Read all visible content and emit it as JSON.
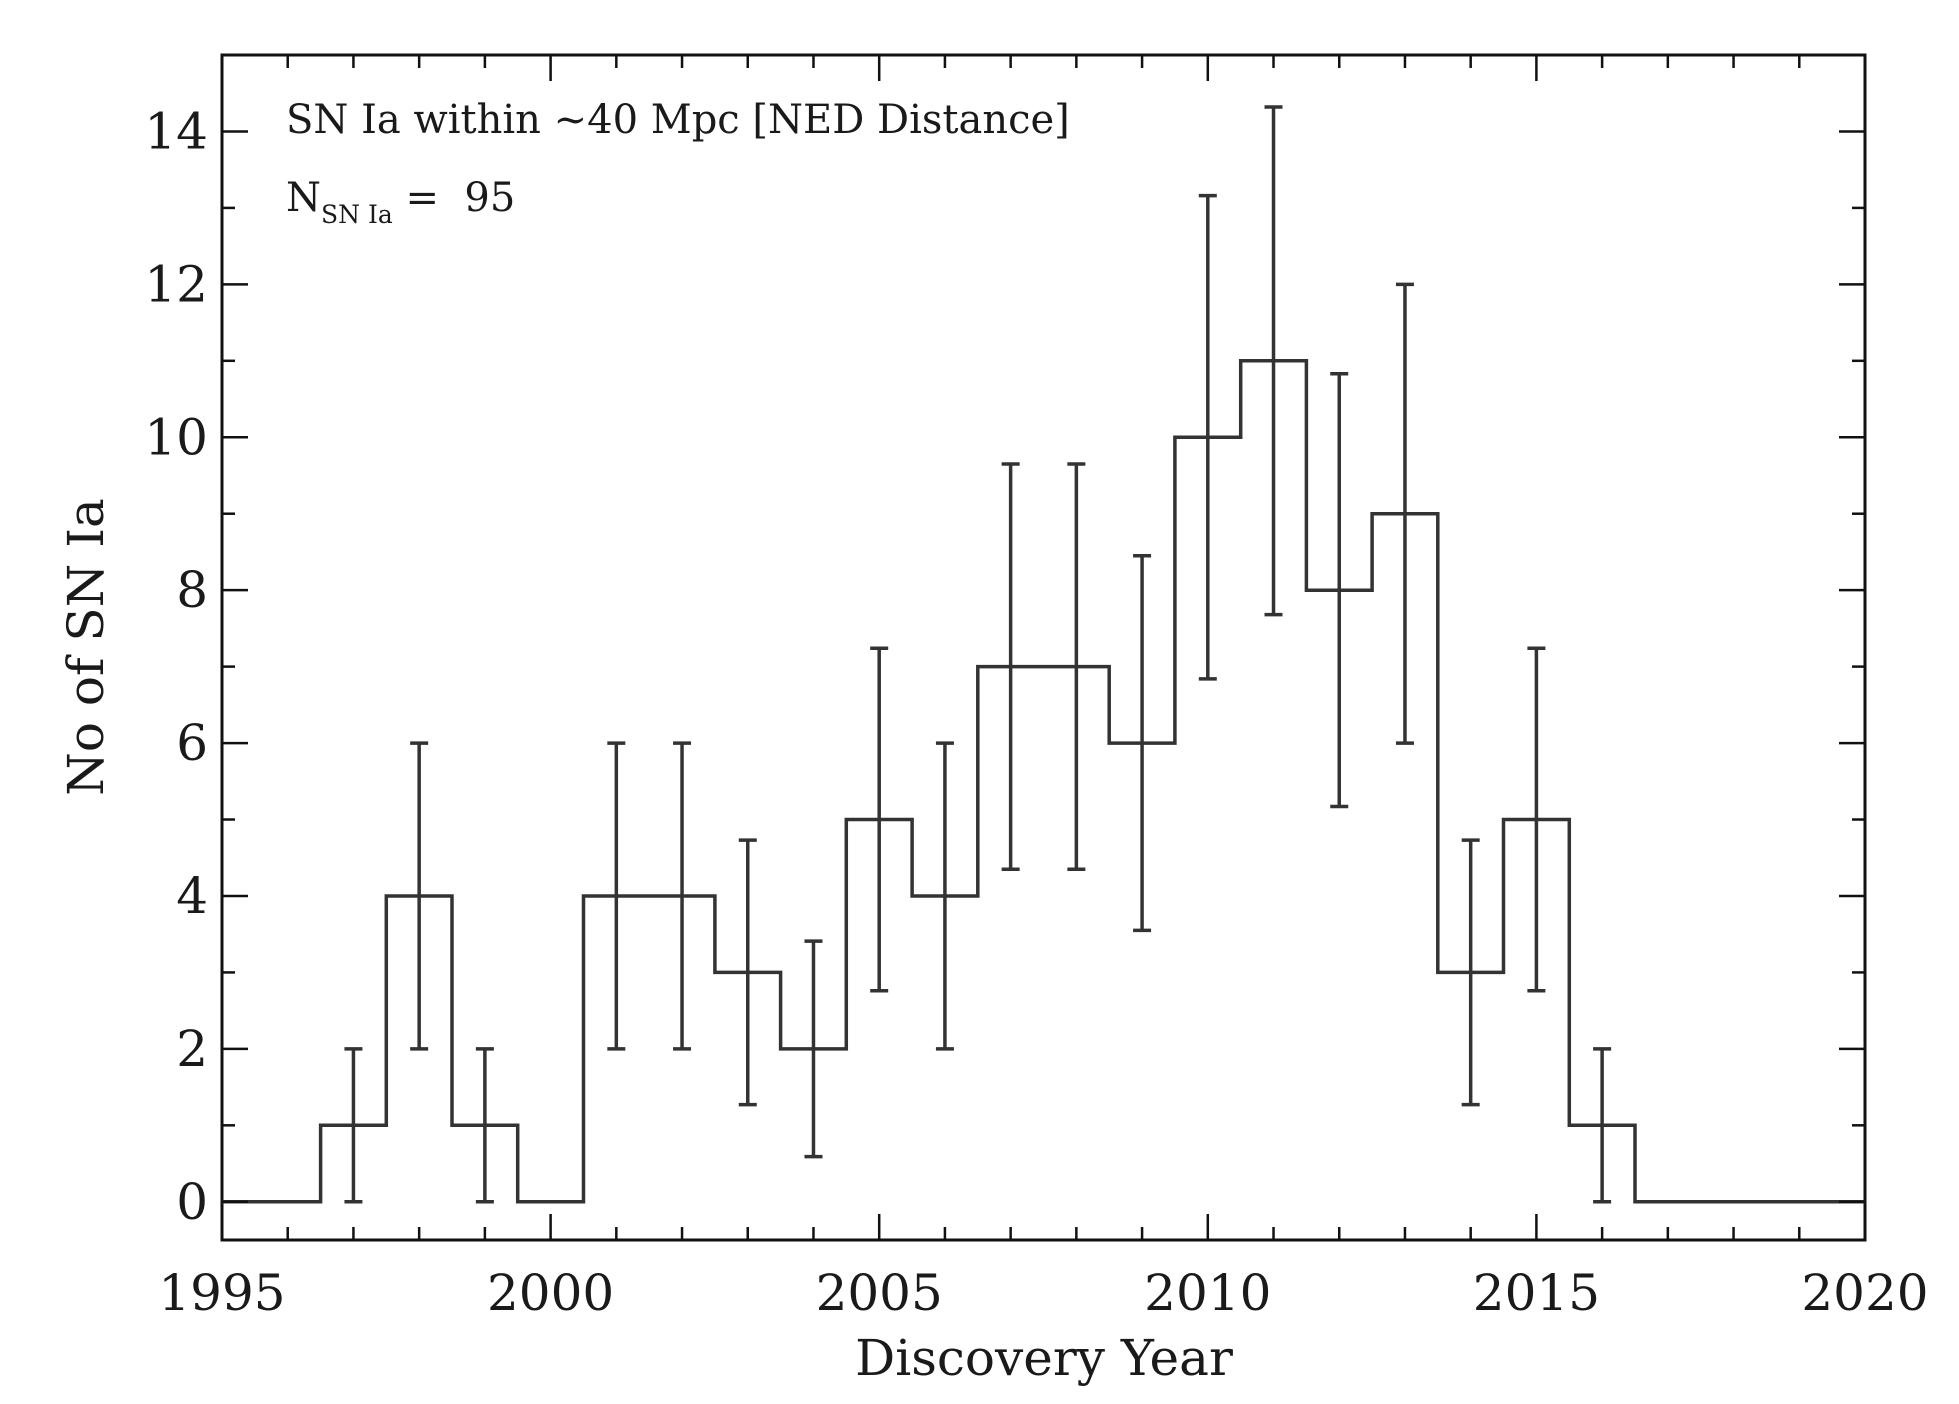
{
  "chart_data": {
    "type": "histogram",
    "annotation": "SN Ia within ~40 Mpc [NED Distance]",
    "count_label": {
      "main": "N",
      "sub": "SN Ia",
      "suffix": " =  95"
    },
    "xlabel": "Discovery Year",
    "ylabel": "No of SN Ia",
    "xlim": [
      1995,
      2020
    ],
    "ylim": [
      -0.5,
      15
    ],
    "x_ticks": [
      1995,
      2000,
      2005,
      2010,
      2015,
      2020
    ],
    "y_ticks": [
      0,
      2,
      4,
      6,
      8,
      10,
      12,
      14
    ],
    "x_minor_step": 1,
    "y_minor_step": 1,
    "bin_width": 1,
    "series": [
      {
        "name": "SN Ia",
        "x": [
          1995,
          1996,
          1997,
          1998,
          1999,
          2000,
          2001,
          2002,
          2003,
          2004,
          2005,
          2006,
          2007,
          2008,
          2009,
          2010,
          2011,
          2012,
          2013,
          2014,
          2015,
          2016,
          2017,
          2018,
          2019,
          2020
        ],
        "values": [
          0,
          0,
          1,
          4,
          1,
          0,
          4,
          4,
          3,
          2,
          5,
          4,
          7,
          7,
          6,
          10,
          11,
          8,
          9,
          3,
          5,
          1,
          0,
          0,
          0,
          0
        ]
      }
    ],
    "error_bars": [
      {
        "x": 1997,
        "low": 0,
        "high": 2
      },
      {
        "x": 1998,
        "low": 2,
        "high": 6
      },
      {
        "x": 1999,
        "low": 0,
        "high": 2
      },
      {
        "x": 2001,
        "low": 2,
        "high": 6
      },
      {
        "x": 2002,
        "low": 2,
        "high": 6
      },
      {
        "x": 2003,
        "low": 1.27,
        "high": 4.73
      },
      {
        "x": 2004,
        "low": 0.59,
        "high": 3.41
      },
      {
        "x": 2005,
        "low": 2.76,
        "high": 7.24
      },
      {
        "x": 2006,
        "low": 2,
        "high": 6
      },
      {
        "x": 2007,
        "low": 4.35,
        "high": 9.65
      },
      {
        "x": 2008,
        "low": 4.35,
        "high": 9.65
      },
      {
        "x": 2009,
        "low": 3.55,
        "high": 8.45
      },
      {
        "x": 2010,
        "low": 6.84,
        "high": 13.16
      },
      {
        "x": 2011,
        "low": 7.68,
        "high": 14.32
      },
      {
        "x": 2012,
        "low": 5.17,
        "high": 10.83
      },
      {
        "x": 2013,
        "low": 6,
        "high": 12
      },
      {
        "x": 2014,
        "low": 1.27,
        "high": 4.73
      },
      {
        "x": 2015,
        "low": 2.76,
        "high": 7.24
      },
      {
        "x": 2016,
        "low": 0,
        "high": 2
      }
    ],
    "colors": {
      "line": "#333333",
      "background": "#ffffff",
      "text": "#1a1a1a"
    }
  }
}
